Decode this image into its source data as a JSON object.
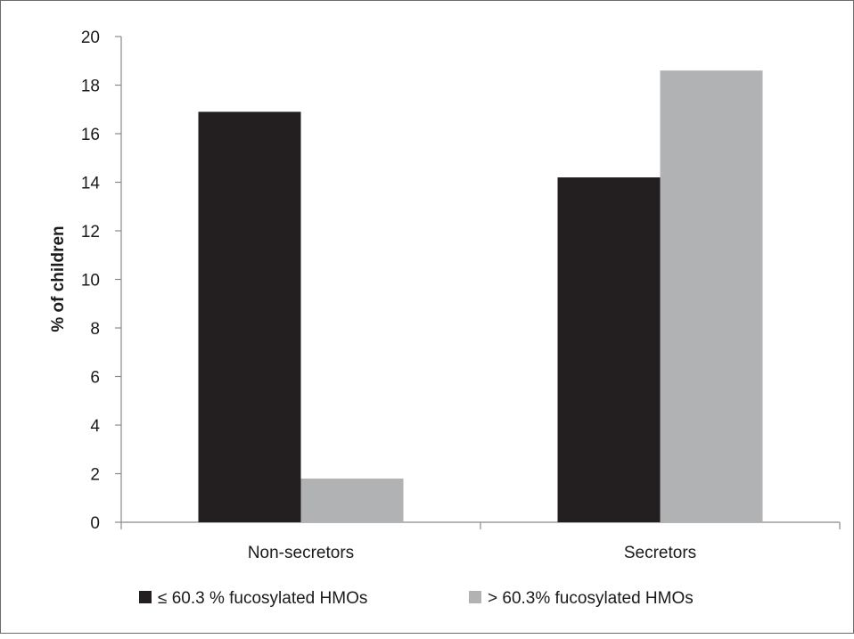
{
  "chart_data": {
    "type": "bar",
    "title": "",
    "xlabel": "",
    "ylabel": "% of children",
    "ylim": [
      0,
      20
    ],
    "yticks": [
      0,
      2,
      4,
      6,
      8,
      10,
      12,
      14,
      16,
      18,
      20
    ],
    "grid": false,
    "legend_position": "bottom",
    "categories": [
      "Non-secretors",
      "Secretors"
    ],
    "series": [
      {
        "name": "≤ 60.3 % fucosylated HMOs",
        "color": "#231f20",
        "values": [
          16.9,
          14.2
        ]
      },
      {
        "name": "> 60.3% fucosylated HMOs",
        "color": "#b1b2b4",
        "values": [
          1.8,
          18.6
        ]
      }
    ]
  }
}
